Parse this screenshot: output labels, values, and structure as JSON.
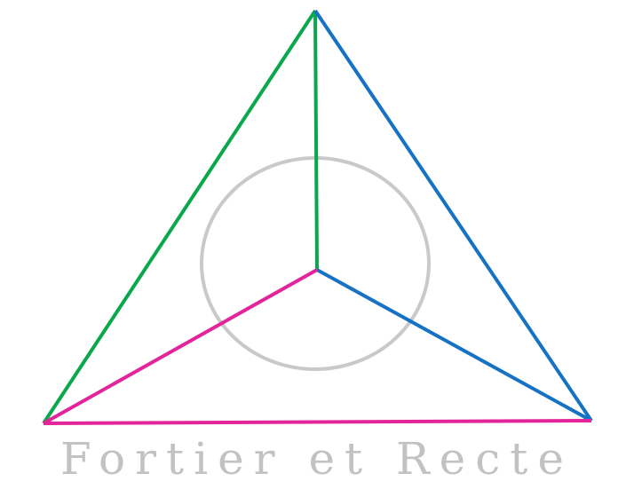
{
  "motto": "Fortier et Recte",
  "colors": {
    "green": "#0aa84c",
    "blue": "#1672c4",
    "magenta": "#e3249b",
    "circle": "#c9c9c9",
    "motto": "#c2c2c2"
  }
}
